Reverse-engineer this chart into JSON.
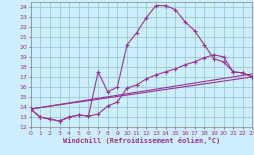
{
  "bg_color": "#cceeff",
  "line_color": "#993399",
  "grid_color": "#99cccc",
  "xlim": [
    0,
    23
  ],
  "ylim": [
    12,
    24.5
  ],
  "yticks": [
    12,
    13,
    14,
    15,
    16,
    17,
    18,
    19,
    20,
    21,
    22,
    23,
    24
  ],
  "xticks": [
    0,
    1,
    2,
    3,
    4,
    5,
    6,
    7,
    8,
    9,
    10,
    11,
    12,
    13,
    14,
    15,
    16,
    17,
    18,
    19,
    20,
    21,
    22,
    23
  ],
  "xlabel": "Windchill (Refroidissement éolien,°C)",
  "line1_x": [
    0,
    1,
    2,
    3,
    4,
    5,
    6,
    7,
    8,
    9,
    10,
    11,
    12,
    13,
    14,
    15,
    16,
    17,
    18,
    19,
    20,
    21,
    22,
    23
  ],
  "line1_y": [
    13.8,
    13.0,
    12.8,
    12.6,
    13.0,
    13.2,
    13.1,
    13.3,
    14.1,
    14.5,
    15.9,
    16.2,
    16.8,
    17.2,
    17.5,
    17.8,
    18.2,
    18.5,
    18.9,
    19.2,
    19.0,
    17.5,
    17.4,
    17.0
  ],
  "line2_x": [
    0,
    1,
    2,
    3,
    4,
    5,
    6,
    7,
    8,
    9,
    10,
    11,
    12,
    13,
    14,
    15,
    16,
    17,
    18,
    19,
    20,
    21,
    22,
    23
  ],
  "line2_y": [
    13.8,
    13.0,
    12.8,
    12.6,
    13.0,
    13.2,
    13.1,
    17.5,
    15.5,
    16.0,
    20.2,
    21.4,
    22.9,
    24.1,
    24.1,
    23.7,
    22.5,
    21.6,
    20.2,
    18.8,
    18.5,
    17.5,
    17.4,
    17.0
  ],
  "line3_x": [
    0,
    23
  ],
  "line3_y": [
    13.8,
    17.0
  ],
  "line4_x": [
    0,
    23
  ],
  "line4_y": [
    13.8,
    17.3
  ]
}
